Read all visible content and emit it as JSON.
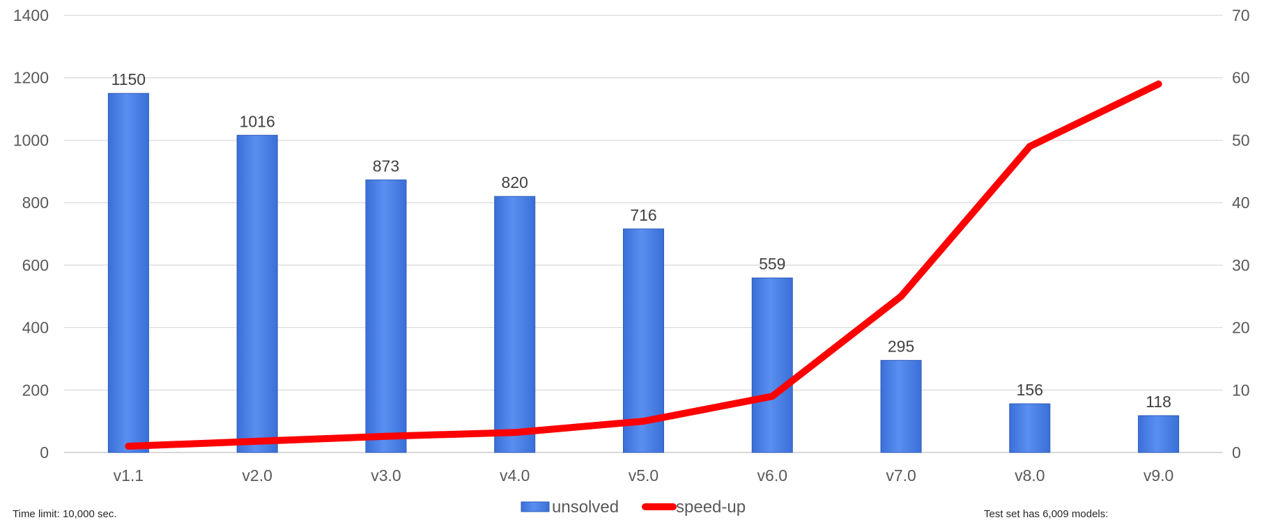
{
  "chart_data": {
    "type": "bar",
    "categories": [
      "v1.1",
      "v2.0",
      "v3.0",
      "v4.0",
      "v5.0",
      "v6.0",
      "v7.0",
      "v8.0",
      "v9.0"
    ],
    "series": [
      {
        "name": "unsolved",
        "type": "bar",
        "axis": "left",
        "color": "#4a7fe0",
        "values": [
          1150,
          1016,
          873,
          820,
          716,
          559,
          295,
          156,
          118
        ]
      },
      {
        "name": "speed-up",
        "type": "line",
        "axis": "right",
        "color": "#ff0000",
        "values": [
          1,
          1.8,
          2.6,
          3.2,
          5,
          9,
          25,
          49,
          59
        ]
      }
    ],
    "ylim": [
      0,
      1400
    ],
    "yticks": [
      0,
      200,
      400,
      600,
      800,
      1000,
      1200,
      1400
    ],
    "y2lim": [
      0,
      70
    ],
    "y2ticks": [
      0,
      10,
      20,
      30,
      40,
      50,
      60,
      70
    ],
    "grid": true,
    "legend": "bottom-center",
    "data_labels": true
  },
  "notes": {
    "left": "Time limit: 10,000 sec.",
    "right": "Test set has 6,009 models:"
  }
}
